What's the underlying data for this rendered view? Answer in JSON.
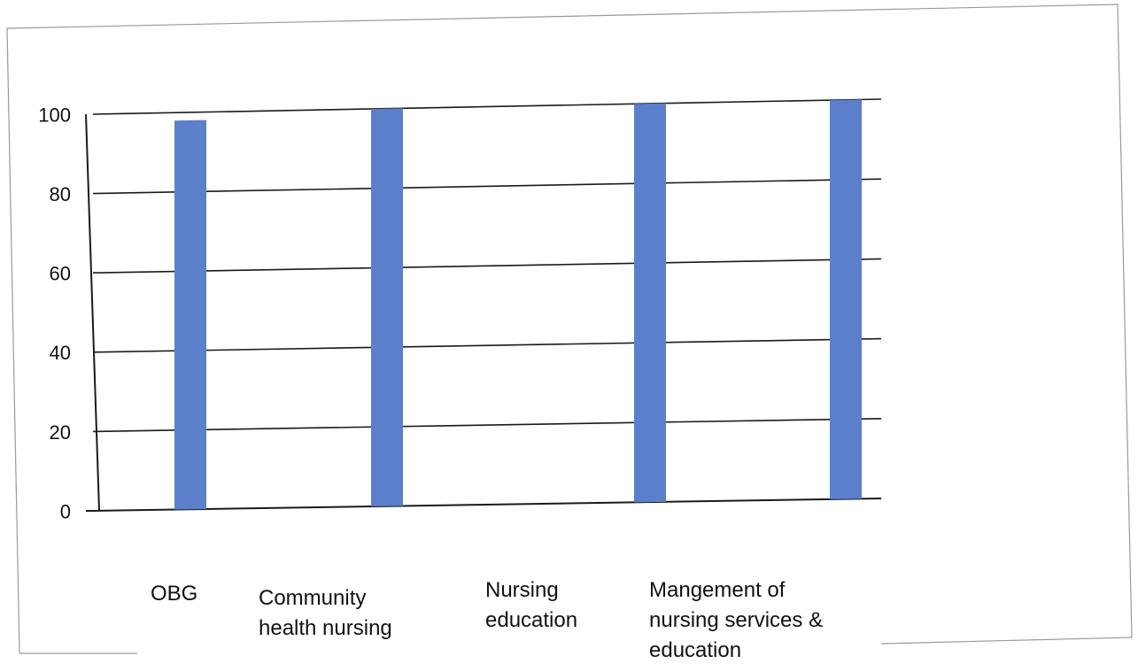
{
  "chart_data": {
    "type": "bar",
    "title": "",
    "xlabel": "",
    "ylabel": "",
    "categories": [
      [
        "OBG"
      ],
      [
        "Community",
        "health nursing"
      ],
      [
        "Nursing",
        "education"
      ],
      [
        "Mangement of",
        "nursing services &",
        "education"
      ]
    ],
    "bar_values": [
      98,
      100,
      100,
      100
    ],
    "bar_color": "#5B7FCB",
    "ylim": [
      0,
      100
    ],
    "yticks": [
      0,
      20,
      40,
      60,
      80,
      100
    ],
    "grid": true,
    "legend": "none"
  }
}
